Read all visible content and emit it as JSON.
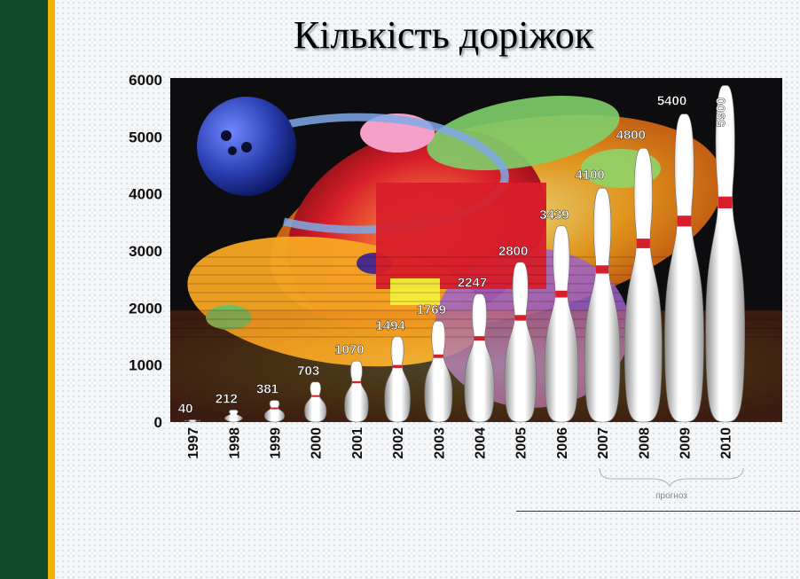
{
  "title": "Кількість доріжок",
  "forecast_label": "прогноз",
  "chart_data": {
    "type": "bar",
    "title": "Кількість доріжок",
    "categories": [
      "1997",
      "1998",
      "1999",
      "2000",
      "2001",
      "2002",
      "2003",
      "2004",
      "2005",
      "2006",
      "2007",
      "2008",
      "2009",
      "2010"
    ],
    "values": [
      40,
      212,
      381,
      703,
      1070,
      1494,
      1769,
      2247,
      2800,
      3439,
      4100,
      4800,
      5400,
      5900
    ],
    "value_labels": [
      "40",
      "212",
      "381",
      "703",
      "1070",
      "1494",
      "1769",
      "2247",
      "2800",
      "3439",
      "4100",
      "4800",
      "5400",
      "5900"
    ],
    "yticks": [
      "0",
      "1000",
      "2000",
      "3000",
      "4000",
      "5000",
      "6000"
    ],
    "ylim": [
      0,
      6000
    ],
    "forecast_range": [
      "2007",
      "2010"
    ],
    "grid": false,
    "colors": {
      "background": "#0d0d10",
      "pin": "#ffffff",
      "pin_stripe": "#d81e2a",
      "label": "#ffffff",
      "ball": "#2a3fb0"
    }
  }
}
